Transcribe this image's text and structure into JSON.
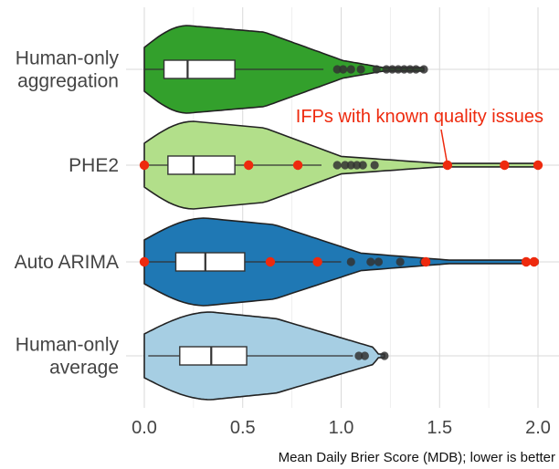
{
  "chart_data": {
    "type": "violin",
    "xlabel": "Mean Daily Brier Score (MDB); lower is better",
    "xlim": [
      -0.1,
      2.05
    ],
    "xticks": [
      "0.0",
      "0.5",
      "1.0",
      "1.5",
      "2.0"
    ],
    "grid": true,
    "annotation": {
      "text": "IFPs with known quality issues",
      "color": "#ee2a0e",
      "points_to": {
        "category": "PHE2",
        "x": 1.54
      }
    },
    "categories": [
      "Human-only\naggregation",
      "PHE2",
      "Auto ARIMA",
      "Human-only\naverage"
    ],
    "series": [
      {
        "category_lines": [
          "Human-only",
          "aggregation"
        ],
        "color": "#33a02c",
        "box": {
          "q1": 0.1,
          "median": 0.22,
          "q3": 0.46,
          "whisker_low": 0.0,
          "whisker_high": 0.91
        },
        "violin_max": 1.42,
        "outliers": [
          0.98,
          1.01,
          1.05,
          1.1,
          1.18,
          1.23,
          1.26,
          1.29,
          1.32,
          1.35,
          1.38,
          1.42
        ],
        "red_points": []
      },
      {
        "category_lines": [
          "PHE2"
        ],
        "color": "#b2df8a",
        "box": {
          "q1": 0.12,
          "median": 0.25,
          "q3": 0.46,
          "whisker_low": 0.0,
          "whisker_high": 0.9
        },
        "violin_max": 2.0,
        "outliers": [
          0.98,
          1.02,
          1.05,
          1.08,
          1.11,
          1.17
        ],
        "red_points": [
          0.0,
          0.53,
          0.78,
          1.54,
          1.83,
          2.0
        ]
      },
      {
        "category_lines": [
          "Auto ARIMA"
        ],
        "color": "#1f78b4",
        "box": {
          "q1": 0.16,
          "median": 0.31,
          "q3": 0.51,
          "whisker_low": 0.0,
          "whisker_high": 1.0
        },
        "violin_max": 2.0,
        "outliers": [
          1.05,
          1.15,
          1.19,
          1.3,
          1.42
        ],
        "red_points": [
          0.0,
          0.64,
          0.88,
          1.43,
          1.94,
          1.98
        ]
      },
      {
        "category_lines": [
          "Human-only",
          "average"
        ],
        "color": "#a6cee3",
        "box": {
          "q1": 0.18,
          "median": 0.34,
          "q3": 0.52,
          "whisker_low": 0.02,
          "whisker_high": 1.06
        },
        "violin_max": 1.22,
        "outliers": [
          1.09,
          1.12,
          1.22
        ],
        "red_points": []
      }
    ]
  }
}
